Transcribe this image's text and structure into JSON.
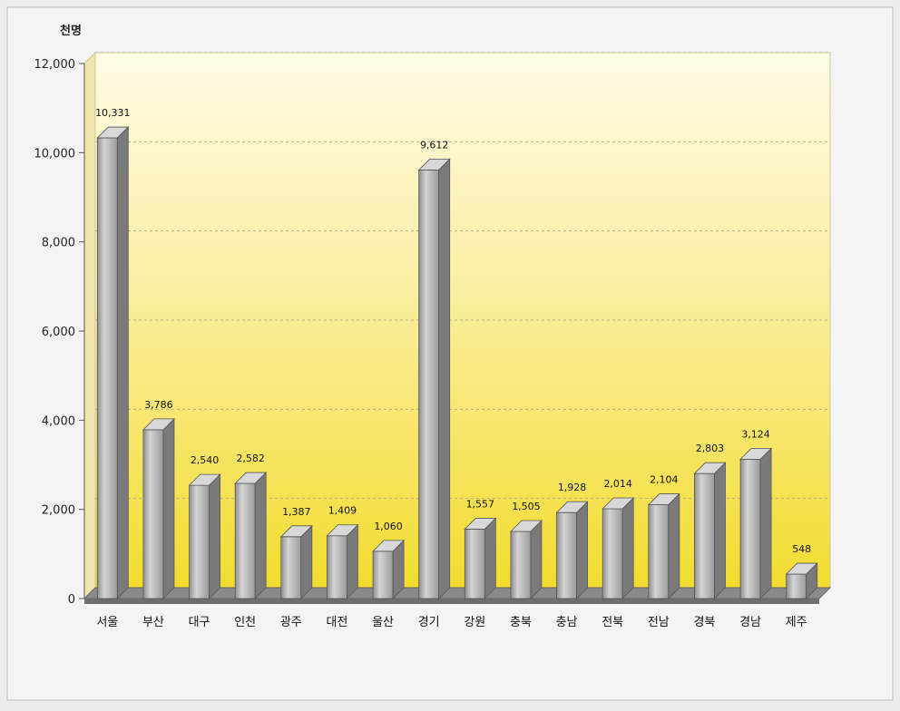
{
  "chart_data": {
    "type": "bar",
    "unit_label": "천명",
    "title": "",
    "xlabel": "",
    "ylabel": "",
    "ylim": [
      0,
      12000
    ],
    "yticks": [
      "0",
      "2,000",
      "4,000",
      "6,000",
      "8,000",
      "10,000",
      "12,000"
    ],
    "categories": [
      "서울",
      "부산",
      "대구",
      "인천",
      "광주",
      "대전",
      "울산",
      "경기",
      "강원",
      "충북",
      "충남",
      "전북",
      "전남",
      "경북",
      "경남",
      "제주"
    ],
    "values": [
      10331,
      3786,
      2540,
      2582,
      1387,
      1409,
      1060,
      9612,
      1557,
      1505,
      1928,
      2014,
      2104,
      2803,
      3124,
      548
    ],
    "value_labels": [
      "10,331",
      "3,786",
      "2,540",
      "2,582",
      "1,387",
      "1,409",
      "1,060",
      "9,612",
      "1,557",
      "1,505",
      "1,928",
      "2,014",
      "2,104",
      "2,803",
      "3,124",
      "548"
    ],
    "grid": true,
    "colors": {
      "bar_face": "#b4b4b4",
      "bar_top": "#d8d8d8",
      "bar_side": "#7a7a7a",
      "floor": "#8a8a8a",
      "plot_top": "#fffbe6",
      "plot_bottom": "#f3dc2e"
    }
  }
}
